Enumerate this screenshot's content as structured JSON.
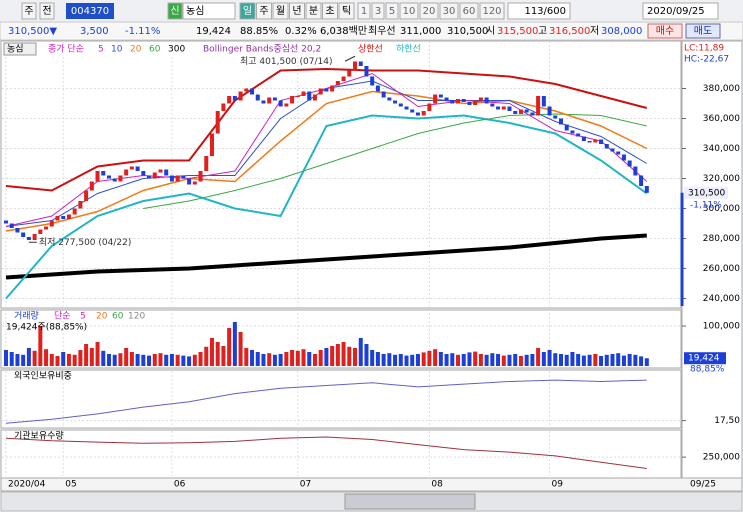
{
  "toolbar": {
    "market": "주",
    "scope": "전",
    "code": "004370",
    "new": "신",
    "name": "농심",
    "periods": [
      "일",
      "주",
      "월",
      "년",
      "분",
      "초",
      "틱"
    ],
    "intervals": [
      "1",
      "3",
      "5",
      "10",
      "20",
      "30",
      "60",
      "120"
    ],
    "count": "113/600",
    "date": "2020/09/25"
  },
  "quote": {
    "price": "310,500▼",
    "change": "3,500",
    "rate": "-1.11%",
    "volume": "19,424",
    "volume_ratio": "88.85%",
    "turnover_rate": "0.32%",
    "amount": "6,038백만",
    "best_label": "최우선",
    "ask": "311,000",
    "bid": "310,500",
    "open_label": "시",
    "open": "315,500",
    "high_label": "고",
    "high": "316,500",
    "low_label": "저",
    "low": "308,000",
    "buy": "매수",
    "sell": "매도"
  },
  "chart_data": [
    {
      "type": "candlestick",
      "title": "농심",
      "legend_ma": "종가 단순",
      "legend_bb": "Bollinger Bands중심선 20,2",
      "xlim": [
        -0.7,
        117.8
      ],
      "ylim": [
        235000,
        411000
      ],
      "yticks": [
        {
          "value": 240000,
          "label": "240,000"
        },
        {
          "value": 260000,
          "label": "260,000"
        },
        {
          "value": 280000,
          "label": "280,000"
        },
        {
          "value": 300000,
          "label": "300,000"
        },
        {
          "value": 320000,
          "label": "320,000"
        },
        {
          "value": 340000,
          "label": "340,000"
        },
        {
          "value": 360000,
          "label": "360,000"
        },
        {
          "value": 380000,
          "label": "380,000"
        }
      ],
      "up_color": "#e0201c",
      "down_color": "#1c3fd8",
      "open": [
        292000,
        290000,
        287000,
        284000,
        281000,
        279000,
        283000,
        286000,
        288000,
        292000,
        295000,
        293000,
        296000,
        300000,
        305000,
        312000,
        318000,
        325000,
        322000,
        320000,
        318000,
        322000,
        326000,
        328000,
        325000,
        322000,
        320000,
        324000,
        326000,
        322000,
        318000,
        322000,
        320000,
        316000,
        318000,
        325000,
        335000,
        350000,
        365000,
        370000,
        375000,
        372000,
        378000,
        380000,
        376000,
        372000,
        370000,
        374000,
        372000,
        368000,
        370000,
        375000,
        375000,
        378000,
        372000,
        376000,
        380000,
        378000,
        382000,
        385000,
        388000,
        392000,
        398000,
        395000,
        388000,
        382000,
        378000,
        374000,
        372000,
        370000,
        368000,
        366000,
        364000,
        362000,
        365000,
        370000,
        376000,
        374000,
        372000,
        370000,
        373000,
        371000,
        369000,
        372000,
        374000,
        370000,
        368000,
        366000,
        368000,
        365000,
        363000,
        366000,
        364000,
        362000,
        375000,
        368000,
        362000,
        360000,
        356000,
        352000,
        350000,
        348000,
        345000,
        344000,
        346000,
        343000,
        340000,
        338000,
        336000,
        332000,
        328000,
        322000,
        315000
      ],
      "close": [
        290000,
        287000,
        284000,
        281000,
        279000,
        283000,
        286000,
        288000,
        292000,
        295000,
        293000,
        296000,
        300000,
        305000,
        312000,
        318000,
        325000,
        322000,
        320000,
        318000,
        322000,
        326000,
        328000,
        325000,
        322000,
        320000,
        324000,
        326000,
        322000,
        318000,
        322000,
        320000,
        316000,
        318000,
        325000,
        335000,
        350000,
        365000,
        370000,
        375000,
        372000,
        378000,
        380000,
        376000,
        372000,
        370000,
        374000,
        372000,
        368000,
        370000,
        375000,
        375000,
        378000,
        372000,
        376000,
        380000,
        378000,
        382000,
        385000,
        388000,
        392000,
        398000,
        395000,
        388000,
        382000,
        378000,
        374000,
        372000,
        370000,
        368000,
        366000,
        364000,
        362000,
        365000,
        370000,
        376000,
        374000,
        372000,
        370000,
        373000,
        371000,
        369000,
        372000,
        374000,
        370000,
        368000,
        366000,
        368000,
        365000,
        363000,
        366000,
        364000,
        362000,
        375000,
        368000,
        362000,
        360000,
        356000,
        352000,
        350000,
        348000,
        345000,
        344000,
        346000,
        343000,
        340000,
        338000,
        336000,
        332000,
        328000,
        322000,
        315000,
        310500
      ],
      "series": [
        {
          "name": "300",
          "color": "#000000",
          "width": 4,
          "x": [
            0,
            8,
            16,
            24,
            32,
            40,
            48,
            56,
            64,
            72,
            80,
            88,
            96,
            104,
            112
          ],
          "values": [
            254000,
            256000,
            258000,
            259000,
            260000,
            262000,
            264000,
            266000,
            268000,
            270000,
            272000,
            274000,
            277000,
            280000,
            282000
          ]
        },
        {
          "name": "상한선",
          "color": "#cc1010",
          "width": 2,
          "x": [
            0,
            8,
            16,
            24,
            32,
            40,
            48,
            56,
            64,
            72,
            80,
            88,
            96,
            104,
            112
          ],
          "values": [
            315000,
            312000,
            328000,
            332000,
            332000,
            372000,
            392000,
            393000,
            392000,
            392000,
            390000,
            388000,
            383000,
            375000,
            367000
          ]
        },
        {
          "name": "하한선",
          "color": "#22b5c8",
          "width": 2,
          "x": [
            0,
            8,
            16,
            24,
            32,
            40,
            48,
            56,
            64,
            72,
            80,
            88,
            96,
            104,
            112
          ],
          "values": [
            240000,
            275000,
            295000,
            305000,
            310000,
            300000,
            295000,
            355000,
            362000,
            360000,
            362000,
            357000,
            350000,
            332000,
            310000
          ]
        },
        {
          "name": "60",
          "color": "#3aa845",
          "width": 1,
          "x": [
            0,
            8,
            16,
            24,
            32,
            40,
            48,
            56,
            64,
            72,
            80,
            88,
            96,
            104,
            112
          ],
          "values": [
            null,
            null,
            null,
            300000,
            305000,
            312000,
            320000,
            330000,
            340000,
            350000,
            357000,
            362000,
            363000,
            362000,
            355000
          ]
        },
        {
          "name": "20",
          "color": "#f07a1a",
          "width": 1.5,
          "x": [
            0,
            8,
            16,
            24,
            32,
            40,
            48,
            56,
            64,
            72,
            80,
            88,
            96,
            104,
            112
          ],
          "values": [
            285000,
            290000,
            298000,
            312000,
            320000,
            318000,
            345000,
            370000,
            378000,
            375000,
            370000,
            372000,
            365000,
            355000,
            340000
          ]
        },
        {
          "name": "10",
          "color": "#3050c8",
          "width": 1,
          "x": [
            0,
            8,
            16,
            24,
            32,
            40,
            48,
            56,
            64,
            72,
            80,
            88,
            96,
            104,
            112
          ],
          "values": [
            288000,
            292000,
            310000,
            320000,
            322000,
            322000,
            360000,
            380000,
            385000,
            372000,
            372000,
            372000,
            358000,
            348000,
            330000
          ]
        },
        {
          "name": "5",
          "color": "#d020c0",
          "width": 1,
          "x": [
            0,
            8,
            16,
            24,
            32,
            40,
            48,
            56,
            64,
            72,
            80,
            88,
            96,
            104,
            112
          ],
          "values": [
            288000,
            295000,
            318000,
            322000,
            320000,
            325000,
            372000,
            380000,
            390000,
            368000,
            372000,
            370000,
            352000,
            345000,
            318000
          ]
        }
      ],
      "annotations": [
        {
          "text": "최고 401,500 (07/14)",
          "x": 61,
          "y": 401500
        },
        {
          "text": "최저 277,500 (04/22)",
          "x": 4,
          "y": 277500
        }
      ],
      "lc": "LC:11,89",
      "hc": "HC:-22,67",
      "last_price": {
        "value": 310500,
        "label": "310,500"
      },
      "last_rate": "-1,11%"
    },
    {
      "type": "bar",
      "title": "거래량",
      "legend_ma": "단순",
      "legend_periods": [
        {
          "name": "5",
          "color": "#d020c0"
        },
        {
          "name": "20",
          "color": "#f07a1a"
        },
        {
          "name": "60",
          "color": "#3aa845"
        },
        {
          "name": "120",
          "color": "#888888"
        }
      ],
      "subtitle": "19,424주(88,85%)",
      "ylim": [
        0,
        130000
      ],
      "yticks": [
        {
          "value": 100000,
          "label": "100,000"
        }
      ],
      "values": [
        40000,
        35000,
        30000,
        28000,
        45000,
        38000,
        100000,
        42000,
        30000,
        25000,
        35000,
        30000,
        28000,
        40000,
        55000,
        45000,
        60000,
        38000,
        30000,
        28000,
        32000,
        45000,
        35000,
        30000,
        28000,
        26000,
        30000,
        32000,
        28000,
        30000,
        28000,
        26000,
        24000,
        28000,
        35000,
        48000,
        70000,
        60000,
        50000,
        95000,
        110000,
        85000,
        45000,
        40000,
        35000,
        30000,
        32000,
        28000,
        30000,
        35000,
        40000,
        38000,
        42000,
        35000,
        30000,
        40000,
        45000,
        50000,
        55000,
        60000,
        48000,
        45000,
        70000,
        55000,
        40000,
        35000,
        30000,
        32000,
        28000,
        30000,
        26000,
        28000,
        30000,
        34000,
        38000,
        42000,
        35000,
        30000,
        32000,
        28000,
        30000,
        34000,
        36000,
        30000,
        28000,
        32000,
        30000,
        26000,
        28000,
        30000,
        25000,
        28000,
        30000,
        45000,
        35000,
        40000,
        32000,
        30000,
        28000,
        35000,
        30000,
        26000,
        28000,
        30000,
        25000,
        28000,
        30000,
        32000,
        26000,
        30000,
        28000,
        24000,
        19424
      ],
      "last_label": {
        "value": 19424,
        "label": "19,424"
      },
      "last_ratio": "88,85%"
    },
    {
      "type": "line",
      "title": "외국인보유비중",
      "ylim": [
        17.3,
        19.3
      ],
      "yticks": [
        {
          "value": 17.5,
          "label": "17,50"
        }
      ],
      "series": [
        {
          "name": "외국인보유비중",
          "color": "#6060c8",
          "x": [
            0,
            8,
            16,
            24,
            32,
            40,
            48,
            56,
            64,
            72,
            80,
            88,
            96,
            104,
            112
          ],
          "values": [
            17.4,
            17.55,
            17.75,
            18.0,
            18.2,
            18.5,
            18.7,
            18.8,
            18.9,
            18.75,
            18.85,
            18.95,
            19.0,
            18.95,
            19.0
          ]
        }
      ]
    },
    {
      "type": "line",
      "title": "기관보유수량",
      "ylim": [
        220000,
        290000
      ],
      "yticks": [
        {
          "value": 250000,
          "label": "250,000"
        }
      ],
      "series": [
        {
          "name": "기관보유수량",
          "color": "#a03040",
          "x": [
            0,
            8,
            16,
            24,
            32,
            40,
            48,
            56,
            64,
            72,
            80,
            88,
            96,
            104,
            112
          ],
          "values": [
            280000,
            276000,
            274000,
            272000,
            273000,
            275000,
            280000,
            282000,
            278000,
            270000,
            262000,
            258000,
            252000,
            242000,
            232000
          ]
        }
      ],
      "xticks": [
        {
          "value": 0,
          "label": "2020/04"
        },
        {
          "value": 10,
          "label": "05"
        },
        {
          "value": 29,
          "label": "06"
        },
        {
          "value": 51,
          "label": "07"
        },
        {
          "value": 74,
          "label": "08"
        },
        {
          "value": 95,
          "label": "09"
        }
      ],
      "last_date": "09/25"
    }
  ]
}
